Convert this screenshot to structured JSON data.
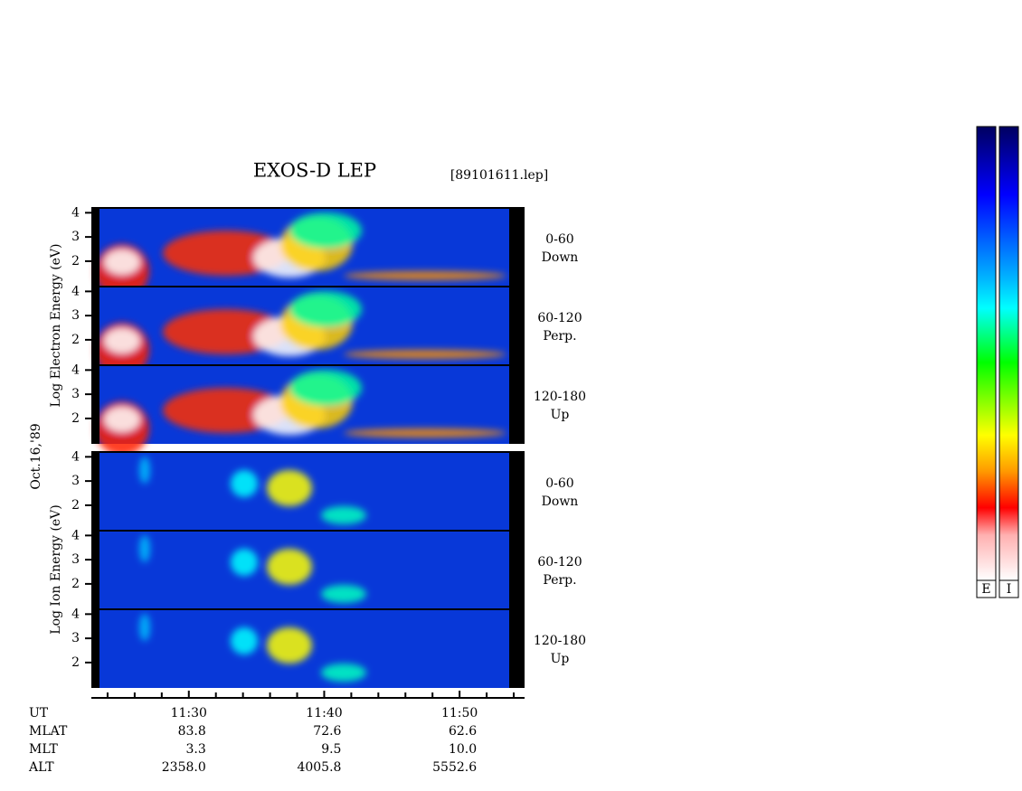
{
  "title": "EXOS-D LEP",
  "file": "[89101611.lep]",
  "date": "Oct.16,'89",
  "yticks": [
    2,
    3,
    4
  ],
  "ylim": [
    0.95,
    4.2
  ],
  "xlim": [
    22.8,
    54.8
  ],
  "xticks": [
    {
      "value": 30,
      "label": "11:30"
    },
    {
      "value": 40,
      "label": "11:40"
    },
    {
      "value": 50,
      "label": "11:50"
    }
  ],
  "minor_xticks": [
    24,
    26,
    28,
    32,
    34,
    36,
    38,
    42,
    44,
    46,
    48,
    52,
    54
  ],
  "electron": {
    "ylabel": "Log  Electron  Energy (eV)",
    "panels": [
      [
        "0-60",
        "Down"
      ],
      [
        "60-120",
        "Perp."
      ],
      [
        "120-180",
        "Up"
      ]
    ]
  },
  "ion": {
    "ylabel": "Log  Ion  Energy (eV)",
    "panels": [
      [
        "0-60",
        "Down"
      ],
      [
        "60-120",
        "Perp."
      ],
      [
        "120-180",
        "Up"
      ]
    ]
  },
  "orbit": {
    "labels": [
      "UT",
      "MLAT",
      "MLT",
      "ALT"
    ],
    "rows": [
      [
        "83.8",
        "72.6",
        "62.6"
      ],
      [
        "3.3",
        "9.5",
        "10.0"
      ],
      [
        "2358.0",
        "4005.8",
        "5552.6"
      ]
    ]
  },
  "colorbars": [
    "E",
    "I"
  ]
}
